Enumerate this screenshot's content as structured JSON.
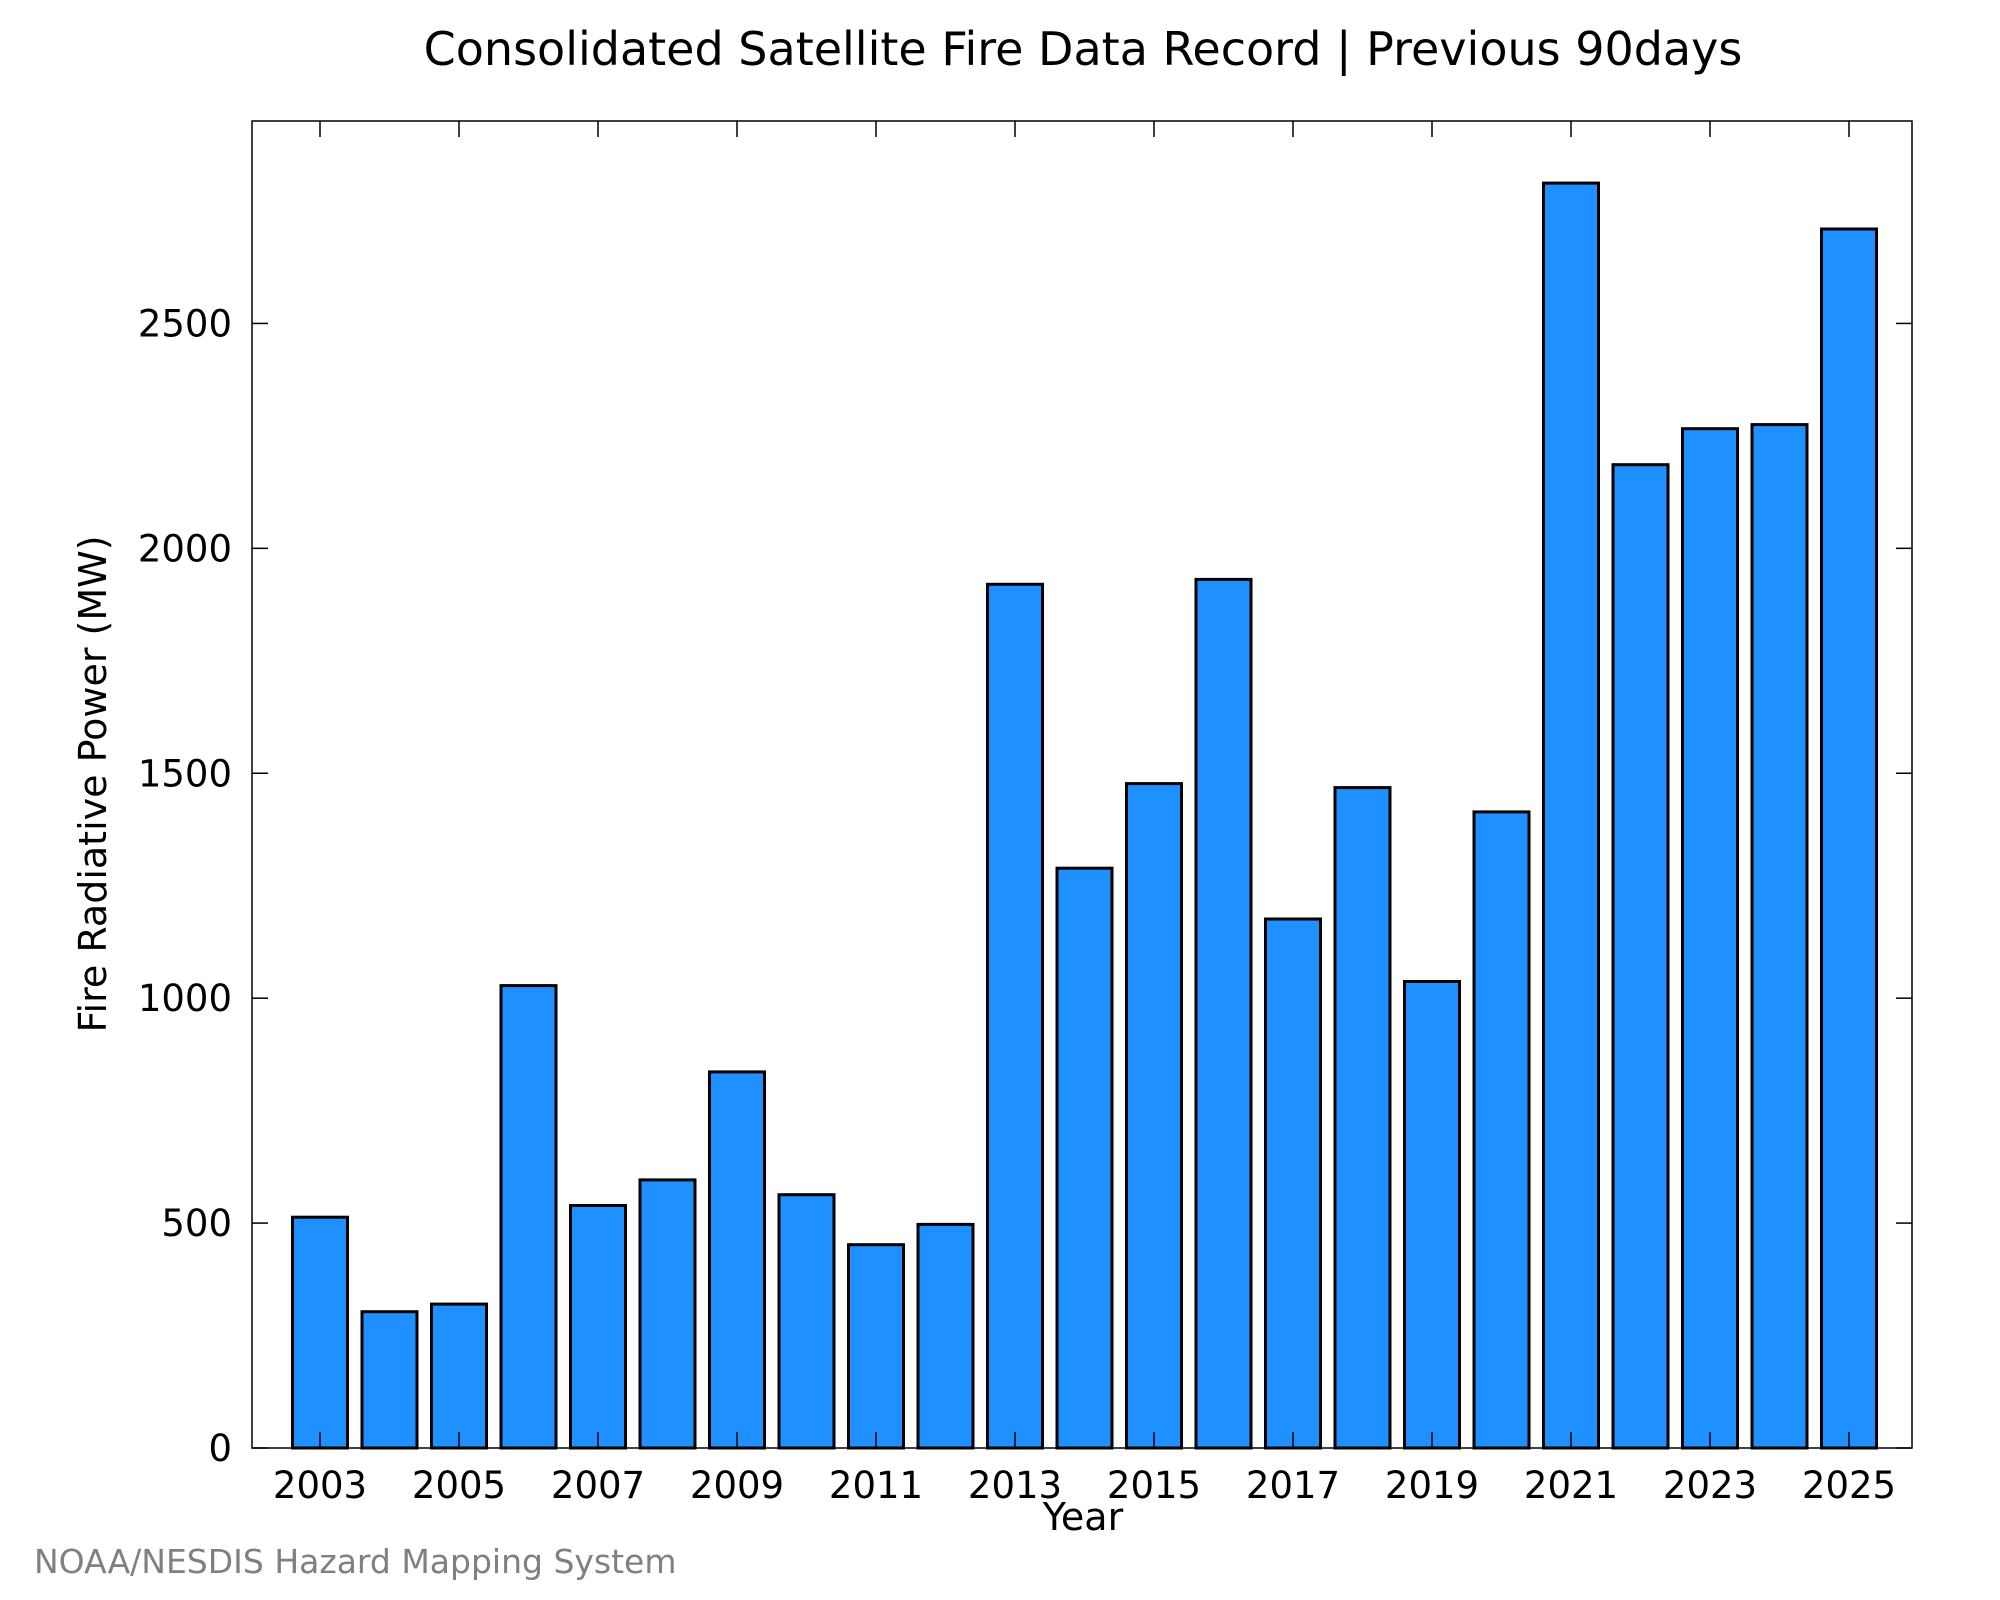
{
  "chart_data": {
    "type": "bar",
    "title": "Consolidated Satellite Fire Data Record | Previous 90days",
    "xlabel": "Year",
    "ylabel": "Fire Radiative Power (MW)",
    "categories": [
      "2003",
      "2004",
      "2005",
      "2006",
      "2007",
      "2008",
      "2009",
      "2010",
      "2011",
      "2012",
      "2013",
      "2014",
      "2015",
      "2016",
      "2017",
      "2018",
      "2019",
      "2020",
      "2021",
      "2022",
      "2023",
      "2024",
      "2025"
    ],
    "values": [
      513,
      303,
      320,
      1028,
      539,
      596,
      836,
      563,
      452,
      497,
      1920,
      1289,
      1477,
      1931,
      1176,
      1468,
      1037,
      1414,
      2812,
      2186,
      2266,
      2275,
      2710
    ],
    "x_tick_labels": [
      "2003",
      "2005",
      "2007",
      "2009",
      "2011",
      "2013",
      "2015",
      "2017",
      "2019",
      "2021",
      "2023",
      "2025"
    ],
    "y_tick_labels": [
      "0",
      "500",
      "1000",
      "1500",
      "2000",
      "2500"
    ],
    "y_ticks": [
      0,
      500,
      1000,
      1500,
      2000,
      2500
    ],
    "ylim": [
      0,
      2950
    ],
    "grid": false,
    "bar_color": "#1e90ff",
    "bar_edge_color": "#000000"
  },
  "credit": {
    "text": "NOAA/NESDIS Hazard Mapping System",
    "color": "#808080"
  }
}
